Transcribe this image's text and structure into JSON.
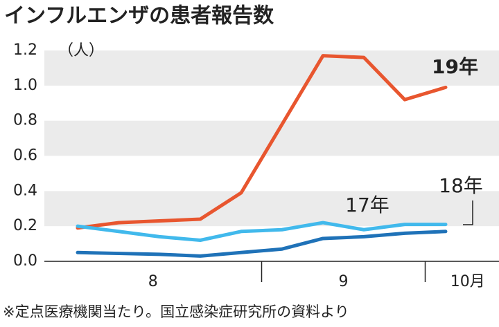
{
  "chart_data": {
    "type": "line",
    "title": "インフルエンザの患者報告数",
    "y_unit": "（人）",
    "note": "※定点医療機関当たり。国立感染症研究所の資料より",
    "categories": [
      null,
      null,
      null,
      null,
      null,
      null,
      null,
      null,
      null,
      null
    ],
    "x_group_labels": [
      "8",
      "9",
      "10月"
    ],
    "ylim": [
      0,
      1.2
    ],
    "yticks": [
      {
        "value": 0,
        "label": "0.0"
      },
      0.2,
      0.4,
      0.6,
      0.8,
      {
        "value": 1,
        "label": "1.0"
      },
      1.2
    ],
    "grid": true,
    "series": [
      {
        "name": "19年",
        "color": "#e8562f",
        "values": [
          0.19,
          0.22,
          0.23,
          0.24,
          0.39,
          0.78,
          1.17,
          1.16,
          0.92,
          0.99
        ]
      },
      {
        "name": "17年",
        "color": "#41b9ec",
        "values": [
          0.2,
          0.17,
          0.14,
          0.12,
          0.17,
          0.18,
          0.22,
          0.18,
          0.21,
          0.21
        ]
      },
      {
        "name": "18年",
        "color": "#1f72b8",
        "values": [
          0.05,
          0.045,
          0.04,
          0.03,
          0.05,
          0.07,
          0.13,
          0.14,
          0.16,
          0.17
        ]
      }
    ]
  }
}
